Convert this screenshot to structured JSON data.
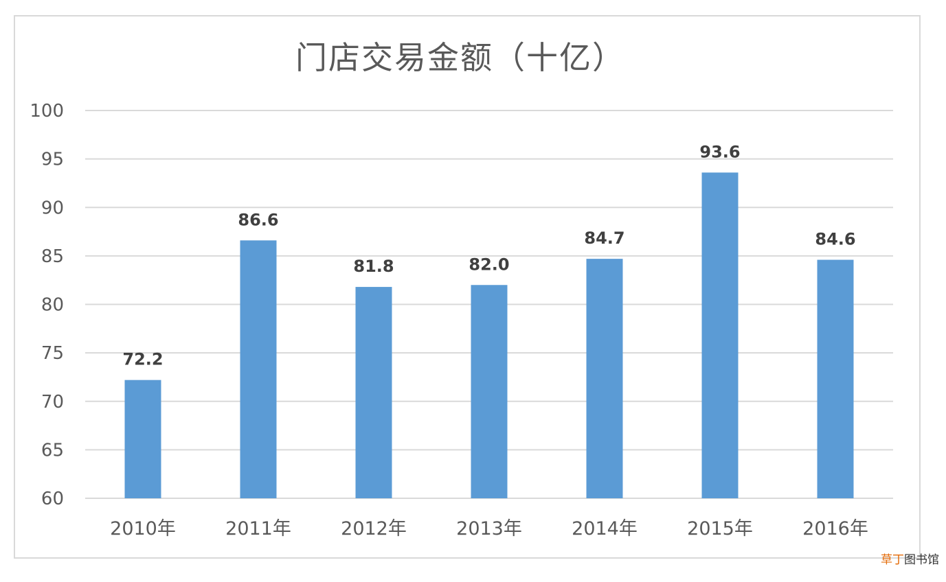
{
  "chart_data": {
    "type": "bar",
    "title": "门店交易金额（十亿）",
    "categories": [
      "2010年",
      "2011年",
      "2012年",
      "2013年",
      "2014年",
      "2015年",
      "2016年"
    ],
    "values": [
      72.2,
      86.6,
      81.8,
      82.0,
      84.7,
      93.6,
      84.6
    ],
    "data_labels": [
      "72.2",
      "86.6",
      "81.8",
      "82.0",
      "84.7",
      "93.6",
      "84.6"
    ],
    "ylim": [
      60,
      100
    ],
    "yticks": [
      60,
      65,
      70,
      75,
      80,
      85,
      90,
      95,
      100
    ],
    "xlabel": "",
    "ylabel": "",
    "grid": true,
    "legend": "none",
    "bar_color": "#5b9bd5",
    "grid_color": "#d9d9d9",
    "axis_text_color": "#595959",
    "label_color": "#404040"
  },
  "watermark": {
    "accent_text": "草丁",
    "text": "图书馆"
  }
}
